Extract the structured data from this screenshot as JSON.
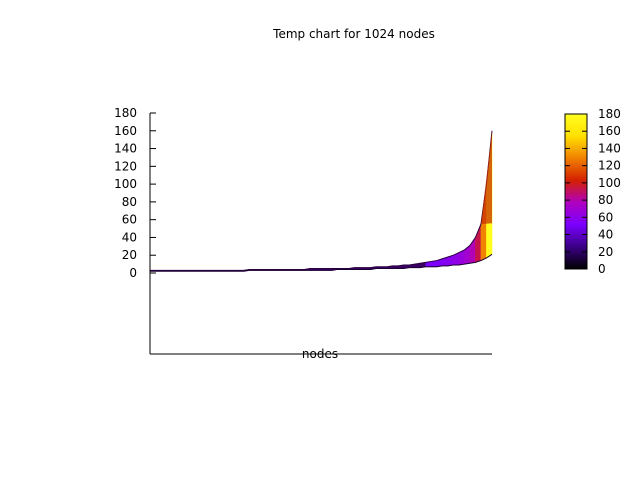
{
  "chart_data": {
    "type": "area",
    "title": "Temp chart for 1024 nodes",
    "xlabel": "nodes",
    "ylabel": "",
    "ylim": [
      0,
      180
    ],
    "yticks": [
      0,
      20,
      40,
      60,
      80,
      100,
      120,
      140,
      160,
      180
    ],
    "colorbar": {
      "range": [
        0,
        180
      ],
      "ticks": [
        0,
        20,
        40,
        60,
        80,
        100,
        120,
        140,
        160,
        180
      ],
      "palette": [
        "#000000",
        "#3a0084",
        "#7a00ff",
        "#b000c0",
        "#d42000",
        "#f08000",
        "#ffe000",
        "#ffff20"
      ]
    },
    "series": [
      {
        "values": [
          3,
          3,
          3,
          3,
          3,
          3,
          3,
          3,
          3,
          3,
          3,
          3,
          3,
          3,
          3,
          3,
          3,
          3,
          4,
          4,
          4,
          4,
          4,
          4,
          4,
          4,
          4,
          4,
          4,
          5,
          5,
          5,
          5,
          5,
          5,
          5,
          5,
          6,
          6,
          6,
          6,
          7,
          7,
          7,
          8,
          8,
          9,
          9,
          10,
          11,
          12,
          13,
          14,
          16,
          18,
          20,
          23,
          26,
          31,
          40,
          55,
          100,
          160
        ]
      },
      {
        "values": [
          2,
          2,
          2,
          2,
          2,
          2,
          2,
          2,
          2,
          2,
          2,
          2,
          2,
          2,
          2,
          2,
          2,
          2,
          3,
          3,
          3,
          3,
          3,
          3,
          3,
          3,
          3,
          3,
          3,
          3,
          3,
          3,
          3,
          3,
          4,
          4,
          4,
          4,
          4,
          4,
          4,
          5,
          5,
          5,
          5,
          5,
          5,
          6,
          6,
          6,
          7,
          7,
          7,
          8,
          8,
          9,
          9,
          10,
          11,
          12,
          14,
          17,
          21
        ]
      }
    ]
  }
}
